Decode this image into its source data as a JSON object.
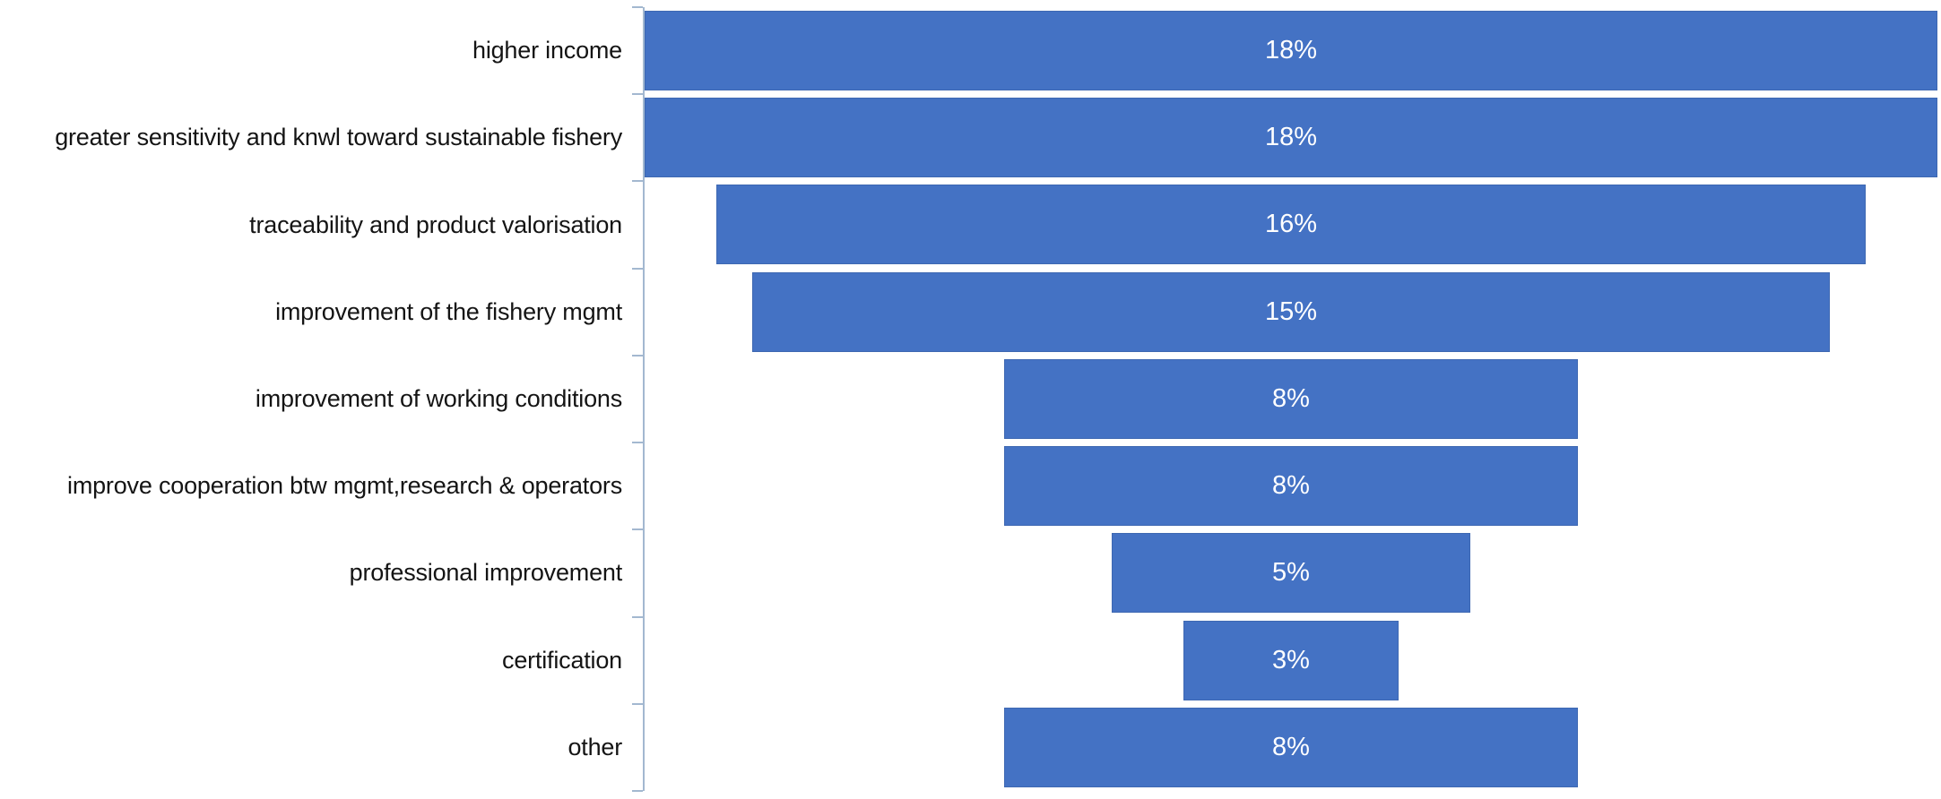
{
  "chart_data": {
    "type": "bar",
    "subtype": "centered-funnel-horizontal",
    "orientation": "horizontal",
    "title": "",
    "xlabel": "",
    "ylabel": "",
    "grid": false,
    "legend": false,
    "xlim": [
      0,
      18
    ],
    "categories": [
      "higher income",
      "greater sensitivity and knwl toward sustainable fishery",
      "traceability and product valorisation",
      "improvement of the fishery mgmt",
      "improvement of working conditions",
      "improve cooperation btw mgmt,research & operators",
      "professional improvement",
      "certification",
      "other"
    ],
    "values": [
      18,
      18,
      16,
      15,
      8,
      8,
      5,
      3,
      8
    ],
    "value_labels": [
      "18%",
      "18%",
      "16%",
      "15%",
      "8%",
      "8%",
      "5%",
      "3%",
      "8%"
    ],
    "colors": {
      "bar_fill": "#4472C4",
      "bar_border": "#3E68B2",
      "axis_line": "#A3B8D0",
      "category_label_text": "#141414",
      "value_label_text": "#FFFFFF",
      "background": "#FFFFFF"
    }
  }
}
